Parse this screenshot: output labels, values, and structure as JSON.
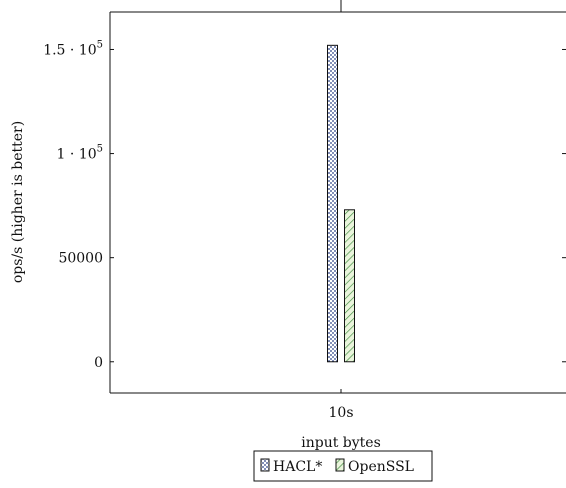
{
  "chart_data": {
    "type": "bar",
    "categories": [
      "10s"
    ],
    "series": [
      {
        "name": "HACL*",
        "values": [
          152000
        ],
        "pattern": "dots",
        "color": "#2a3f86"
      },
      {
        "name": "OpenSSL",
        "values": [
          73000
        ],
        "pattern": "diagonal",
        "color": "#3f8a3f"
      }
    ],
    "xlabel": "input bytes",
    "ylabel": "ops/s (higher is better)",
    "ylim": [
      -15000,
      168000
    ],
    "yticks": [
      {
        "value": 0,
        "label": "0"
      },
      {
        "value": 50000,
        "label": "50000"
      },
      {
        "value": 100000,
        "label": "1 · 10",
        "exp": "5"
      },
      {
        "value": 150000,
        "label": "1.5 · 10",
        "exp": "5"
      }
    ],
    "legend_position": "bottom-center"
  }
}
